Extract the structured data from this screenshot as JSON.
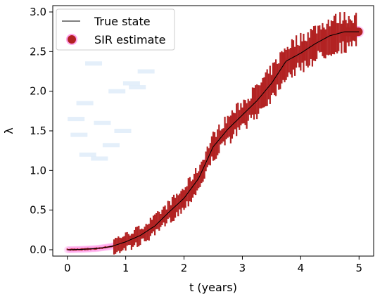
{
  "chart_data": {
    "type": "scatter",
    "title": "",
    "xlabel": "t (years)",
    "ylabel": "λ",
    "xlim": [
      -0.25,
      5.25
    ],
    "ylim": [
      -0.08,
      3.08
    ],
    "xticks": [
      0,
      1,
      2,
      3,
      4,
      5
    ],
    "xtick_labels": [
      "0",
      "1",
      "2",
      "3",
      "4",
      "5"
    ],
    "yticks": [
      0.0,
      0.5,
      1.0,
      1.5,
      2.0,
      2.5,
      3.0
    ],
    "ytick_labels": [
      "0.0",
      "0.5",
      "1.0",
      "1.5",
      "2.0",
      "2.5",
      "3.0"
    ],
    "grid": false,
    "legend_position": "upper-left",
    "series": [
      {
        "name": "True state",
        "kind": "line",
        "color": "#000000",
        "x": [
          0,
          0.25,
          0.5,
          0.75,
          1.0,
          1.25,
          1.5,
          1.75,
          2.0,
          2.25,
          2.5,
          2.75,
          3.0,
          3.25,
          3.5,
          3.75,
          4.0,
          4.25,
          4.5,
          4.75,
          5.0
        ],
        "y": [
          0.0,
          0.005,
          0.015,
          0.04,
          0.1,
          0.18,
          0.3,
          0.48,
          0.65,
          0.9,
          1.3,
          1.52,
          1.7,
          1.88,
          2.1,
          2.38,
          2.48,
          2.6,
          2.7,
          2.75,
          2.75
        ]
      },
      {
        "name": "SIR estimate",
        "kind": "scatter",
        "color": "#b22222",
        "x": [
          0,
          0.25,
          0.5,
          0.75,
          1.0,
          1.25,
          1.5,
          1.75,
          2.0,
          2.25,
          2.5,
          2.75,
          3.0,
          3.25,
          3.5,
          3.75,
          4.0,
          4.25,
          4.5,
          4.75,
          5.0
        ],
        "y": [
          0.0,
          0.005,
          0.015,
          0.04,
          0.1,
          0.18,
          0.3,
          0.48,
          0.65,
          0.9,
          1.3,
          1.52,
          1.7,
          1.88,
          2.1,
          2.38,
          2.48,
          2.6,
          2.7,
          2.75,
          2.75
        ]
      }
    ],
    "colors": {
      "estimate": "#b22222",
      "true_state": "#000000",
      "halo": "#ff66e0",
      "faint_particles": "#d8e8f8"
    }
  }
}
